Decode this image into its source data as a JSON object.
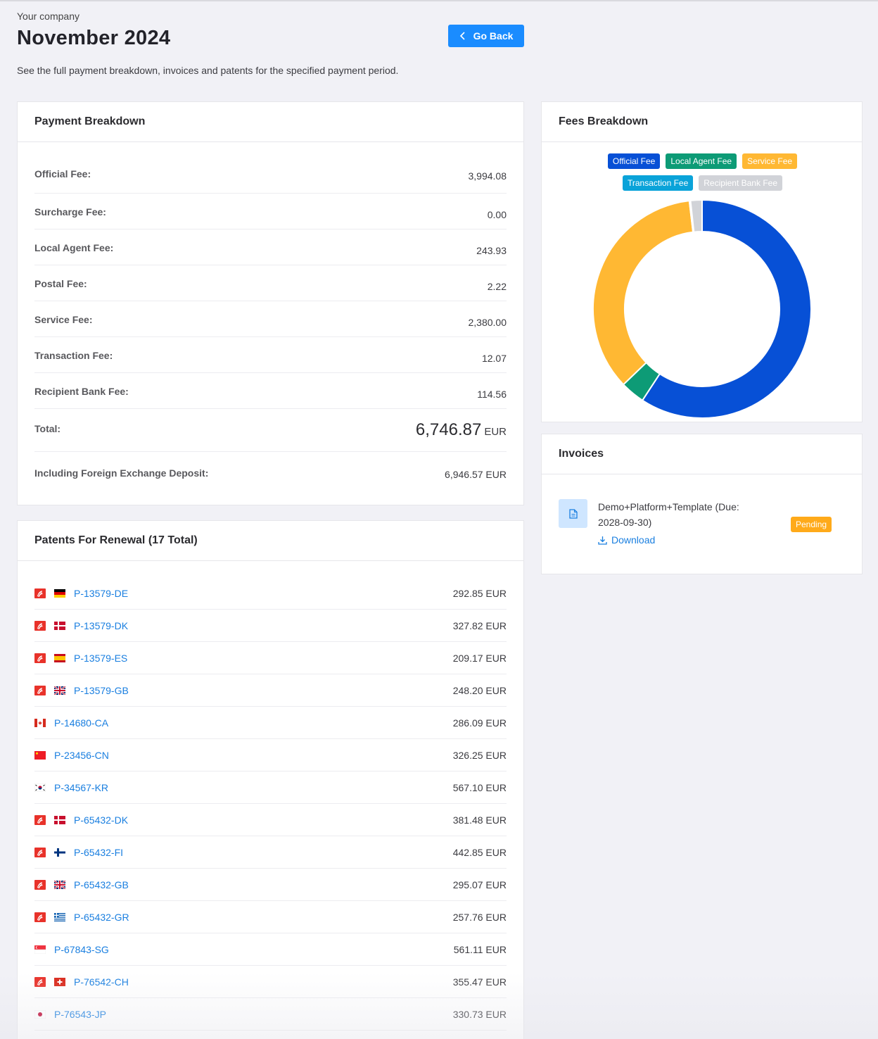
{
  "header": {
    "company": "Your company",
    "title": "November 2024",
    "subtitle": "See the full payment breakdown, invoices and patents for the specified payment period.",
    "go_back_label": "Go Back"
  },
  "payment_breakdown": {
    "title": "Payment Breakdown",
    "rows": [
      {
        "label": "Official Fee:",
        "value": "3,994.08"
      },
      {
        "label": "Surcharge Fee:",
        "value": "0.00"
      },
      {
        "label": "Local Agent Fee:",
        "value": "243.93"
      },
      {
        "label": "Postal Fee:",
        "value": "2.22"
      },
      {
        "label": "Service Fee:",
        "value": "2,380.00"
      },
      {
        "label": "Transaction Fee:",
        "value": "12.07"
      },
      {
        "label": "Recipient Bank Fee:",
        "value": "114.56"
      }
    ],
    "total_label": "Total:",
    "total_amount": "6,746.87",
    "total_currency": "EUR",
    "fx_label": "Including Foreign Exchange Deposit:",
    "fx_value": "6,946.57 EUR"
  },
  "fees_breakdown": {
    "title": "Fees Breakdown"
  },
  "chart_data": {
    "type": "pie",
    "title": "",
    "legend_placement": "top",
    "categories": [
      "Official Fee",
      "Local Agent Fee",
      "Service Fee",
      "Transaction Fee",
      "Recipient Bank Fee"
    ],
    "values": [
      3994.08,
      243.93,
      2380.0,
      12.07,
      114.56
    ],
    "colors": [
      "#0750d6",
      "#0d9b76",
      "#ffb833",
      "#0aa3d9",
      "#d1d3d8"
    ]
  },
  "invoices": {
    "title": "Invoices",
    "items": [
      {
        "name": "Demo+Platform+Template (Due: 2028-09-30)",
        "download_label": "Download",
        "status": "Pending"
      }
    ]
  },
  "patents": {
    "title": "Patents For Renewal (17 Total)",
    "items": [
      {
        "id": "P-13579-DE",
        "amount": "292.85 EUR",
        "ep": true,
        "flag": "de-flag-icon"
      },
      {
        "id": "P-13579-DK",
        "amount": "327.82 EUR",
        "ep": true,
        "flag": "dk-flag-icon"
      },
      {
        "id": "P-13579-ES",
        "amount": "209.17 EUR",
        "ep": true,
        "flag": "es-flag-icon"
      },
      {
        "id": "P-13579-GB",
        "amount": "248.20 EUR",
        "ep": true,
        "flag": "gb-flag-icon"
      },
      {
        "id": "P-14680-CA",
        "amount": "286.09 EUR",
        "ep": false,
        "flag": "ca-flag-icon"
      },
      {
        "id": "P-23456-CN",
        "amount": "326.25 EUR",
        "ep": false,
        "flag": "cn-flag-icon"
      },
      {
        "id": "P-34567-KR",
        "amount": "567.10 EUR",
        "ep": false,
        "flag": "kr-flag-icon"
      },
      {
        "id": "P-65432-DK",
        "amount": "381.48 EUR",
        "ep": true,
        "flag": "dk-flag-icon"
      },
      {
        "id": "P-65432-FI",
        "amount": "442.85 EUR",
        "ep": true,
        "flag": "fi-flag-icon"
      },
      {
        "id": "P-65432-GB",
        "amount": "295.07 EUR",
        "ep": true,
        "flag": "gb-flag-icon"
      },
      {
        "id": "P-65432-GR",
        "amount": "257.76 EUR",
        "ep": true,
        "flag": "gr-flag-icon"
      },
      {
        "id": "P-67843-SG",
        "amount": "561.11 EUR",
        "ep": false,
        "flag": "sg-flag-icon"
      },
      {
        "id": "P-76542-CH",
        "amount": "355.47 EUR",
        "ep": true,
        "flag": "ch-flag-icon"
      },
      {
        "id": "P-76543-JP",
        "amount": "330.73 EUR",
        "ep": false,
        "flag": "jp-flag-icon"
      }
    ]
  }
}
